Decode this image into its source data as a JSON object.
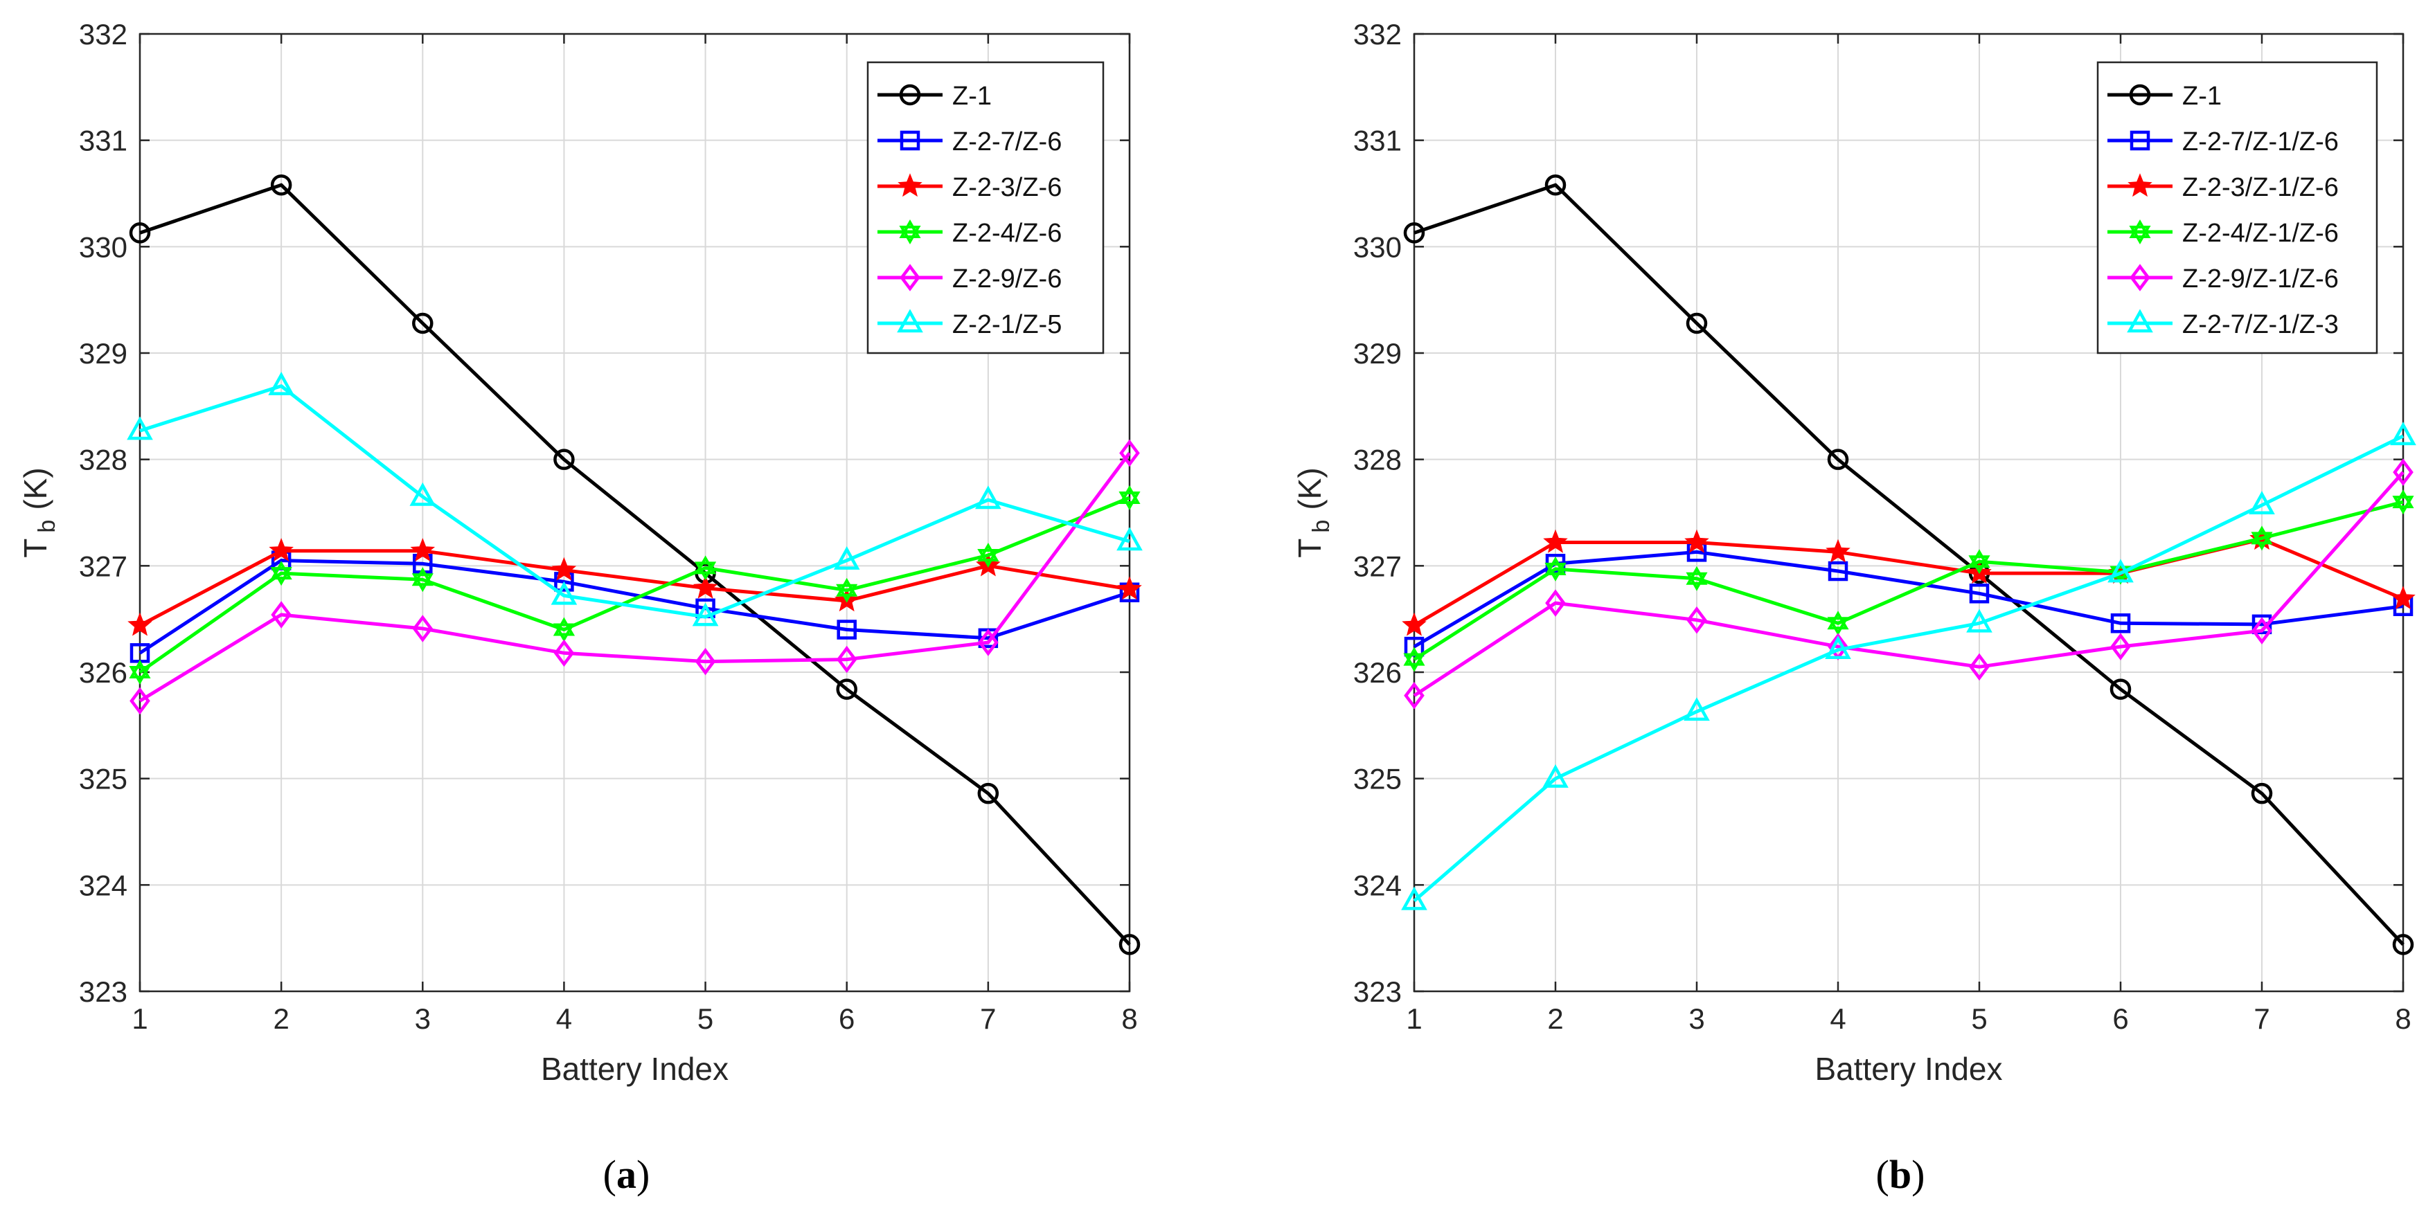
{
  "chart_data": [
    {
      "type": "line",
      "panel_label": "a",
      "xlabel": "Battery Index",
      "ylabel_main": "T",
      "ylabel_sub": "b",
      "ylabel_unit": "(K)",
      "xlim": [
        1,
        8
      ],
      "ylim": [
        323,
        332
      ],
      "xticks": [
        1,
        2,
        3,
        4,
        5,
        6,
        7,
        8
      ],
      "yticks": [
        323,
        324,
        325,
        326,
        327,
        328,
        329,
        330,
        331,
        332
      ],
      "grid": true,
      "legend_position": "top-right",
      "x": [
        1,
        2,
        3,
        4,
        5,
        6,
        7,
        8
      ],
      "series": [
        {
          "name": "Z-1",
          "color": "#000000",
          "marker": "circle",
          "values": [
            330.13,
            330.58,
            329.28,
            328.0,
            326.93,
            325.84,
            324.86,
            323.44
          ]
        },
        {
          "name": "Z-2-7/Z-6",
          "color": "#0000ff",
          "marker": "square",
          "values": [
            326.18,
            327.05,
            327.02,
            326.85,
            326.6,
            326.4,
            326.32,
            326.75
          ]
        },
        {
          "name": "Z-2-3/Z-6",
          "color": "#ff0000",
          "marker": "star",
          "values": [
            326.44,
            327.14,
            327.14,
            326.96,
            326.79,
            326.67,
            327.0,
            326.78
          ]
        },
        {
          "name": "Z-2-4/Z-6",
          "color": "#00ff00",
          "marker": "hexagram",
          "values": [
            326.0,
            326.93,
            326.87,
            326.4,
            326.98,
            326.77,
            327.1,
            327.64
          ]
        },
        {
          "name": "Z-2-9/Z-6",
          "color": "#ff00ff",
          "marker": "diamond",
          "values": [
            325.73,
            326.54,
            326.41,
            326.18,
            326.1,
            326.12,
            326.28,
            328.06
          ]
        },
        {
          "name": "Z-2-1/Z-5",
          "color": "#00ffff",
          "marker": "triangle",
          "values": [
            328.27,
            328.69,
            327.65,
            326.72,
            326.52,
            327.05,
            327.62,
            327.23
          ]
        }
      ]
    },
    {
      "type": "line",
      "panel_label": "b",
      "xlabel": "Battery Index",
      "ylabel_main": "T",
      "ylabel_sub": "b",
      "ylabel_unit": "(K)",
      "xlim": [
        1,
        8
      ],
      "ylim": [
        323,
        332
      ],
      "xticks": [
        1,
        2,
        3,
        4,
        5,
        6,
        7,
        8
      ],
      "yticks": [
        323,
        324,
        325,
        326,
        327,
        328,
        329,
        330,
        331,
        332
      ],
      "grid": true,
      "legend_position": "top-right",
      "x": [
        1,
        2,
        3,
        4,
        5,
        6,
        7,
        8
      ],
      "series": [
        {
          "name": "Z-1",
          "color": "#000000",
          "marker": "circle",
          "values": [
            330.13,
            330.58,
            329.28,
            328.0,
            326.93,
            325.84,
            324.86,
            323.44
          ]
        },
        {
          "name": "Z-2-7/Z-1/Z-6",
          "color": "#0000ff",
          "marker": "square",
          "values": [
            326.24,
            327.02,
            327.13,
            326.95,
            326.74,
            326.46,
            326.45,
            326.62
          ]
        },
        {
          "name": "Z-2-3/Z-1/Z-6",
          "color": "#ff0000",
          "marker": "star",
          "values": [
            326.44,
            327.22,
            327.22,
            327.13,
            326.93,
            326.93,
            327.25,
            326.69
          ]
        },
        {
          "name": "Z-2-4/Z-1/Z-6",
          "color": "#00ff00",
          "marker": "hexagram",
          "values": [
            326.12,
            326.97,
            326.88,
            326.46,
            327.04,
            326.94,
            327.26,
            327.6
          ]
        },
        {
          "name": "Z-2-9/Z-1/Z-6",
          "color": "#ff00ff",
          "marker": "diamond",
          "values": [
            325.78,
            326.65,
            326.49,
            326.24,
            326.05,
            326.24,
            326.39,
            327.88
          ]
        },
        {
          "name": "Z-2-7/Z-1/Z-3",
          "color": "#00ffff",
          "marker": "triangle",
          "values": [
            323.85,
            325.0,
            325.63,
            326.21,
            326.46,
            326.93,
            327.57,
            328.22
          ]
        }
      ]
    }
  ]
}
